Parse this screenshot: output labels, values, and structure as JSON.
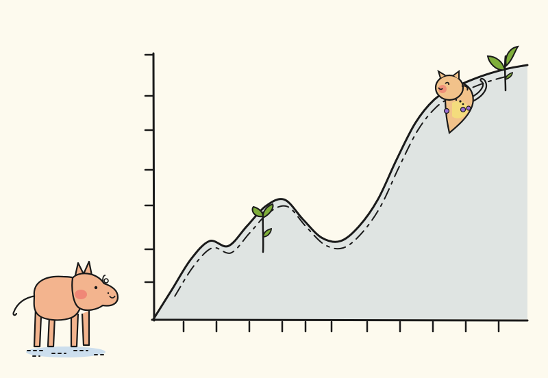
{
  "scene": {
    "background": "#fdfaee",
    "ink": "#1a1a1a",
    "hill_fill": "#dfe4e2",
    "sprout_green": "#7fae3a",
    "pig_body": "#f3b48e",
    "pig_cheek": "#ef7f73",
    "cat_body": "#f2c28a",
    "cat_belly": "#f5e07a",
    "puddle": "#bfd7ec"
  },
  "characters": [
    {
      "name": "pig",
      "icon": "pig-doodle"
    },
    {
      "name": "cat",
      "icon": "cat-doodle"
    }
  ],
  "decorations": [
    {
      "icon": "sprout-icon"
    },
    {
      "icon": "sprout-icon"
    }
  ],
  "chart_data": {
    "type": "area",
    "x": [
      0,
      0.5,
      1,
      1.5,
      2,
      2.5,
      3,
      3.5,
      4,
      4.5,
      5,
      5.5,
      6,
      6.5,
      7,
      7.5,
      8,
      8.5,
      9,
      9.5,
      10
    ],
    "series": [
      {
        "values": [
          0,
          0.9,
          1.8,
          2.35,
          2.2,
          2.8,
          3.4,
          3.6,
          3.0,
          2.45,
          2.35,
          2.8,
          3.6,
          4.8,
          5.9,
          6.6,
          6.95,
          7.2,
          7.4,
          7.55,
          7.65
        ]
      }
    ],
    "xlim": [
      0,
      10
    ],
    "ylim": [
      0,
      8
    ],
    "x_ticks": 11,
    "y_ticks": 7,
    "grid": false,
    "title": "",
    "xlabel": "",
    "ylabel": ""
  }
}
